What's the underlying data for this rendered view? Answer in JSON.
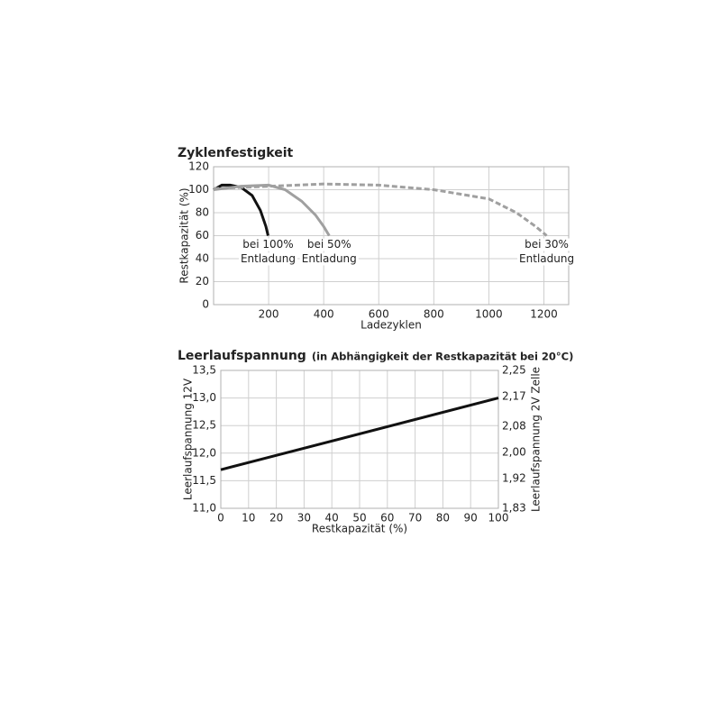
{
  "chart_data": [
    {
      "type": "line",
      "title": "Zyklenfestigkeit",
      "x_label": "Ladezyklen",
      "y_label": "Restkapazität (%)",
      "xlim": [
        0,
        1290
      ],
      "ylim": [
        0,
        120
      ],
      "xticks": [
        200,
        400,
        600,
        800,
        1000,
        1200
      ],
      "yticks": [
        0,
        20,
        40,
        60,
        80,
        100,
        120
      ],
      "grid": true,
      "series": [
        {
          "label": [
            "bei 100%",
            "Entladung"
          ],
          "color": "#111111",
          "dashed": false,
          "x": [
            0,
            30,
            60,
            100,
            140,
            170,
            190,
            198
          ],
          "values": [
            100,
            104,
            104,
            102,
            95,
            82,
            68,
            60
          ]
        },
        {
          "label": [
            "bei 50%",
            "Entladung"
          ],
          "color": "#a0a0a0",
          "dashed": false,
          "x": [
            0,
            100,
            200,
            260,
            320,
            370,
            400,
            420
          ],
          "values": [
            100,
            103,
            104,
            100,
            90,
            78,
            68,
            60
          ]
        },
        {
          "label": [
            "bei 30%",
            "Entladung"
          ],
          "color": "#a0a0a0",
          "dashed": true,
          "x": [
            0,
            200,
            400,
            600,
            800,
            1000,
            1100,
            1170,
            1210
          ],
          "values": [
            101,
            103,
            105,
            104,
            100,
            92,
            80,
            68,
            60
          ]
        }
      ]
    },
    {
      "type": "line",
      "title": "Leerlaufspannung",
      "subtitle": "(in Abhängigkeit der Restkapazität bei 20°C)",
      "x_label": "Restkapazität (%)",
      "y_label": "Leerlaufspannung 12V",
      "y2_label": "Leerlaufspannung 2V Zelle",
      "xlim": [
        0,
        100
      ],
      "ylim": [
        11.0,
        13.5
      ],
      "y2lim": [
        1.83,
        2.25
      ],
      "xticks": [
        0,
        10,
        20,
        30,
        40,
        50,
        60,
        70,
        80,
        90,
        100
      ],
      "yticks": [
        {
          "value": 11.0,
          "label": "11,0"
        },
        {
          "value": 11.5,
          "label": "11,5"
        },
        {
          "value": 12.0,
          "label": "12,0"
        },
        {
          "value": 12.5,
          "label": "12,5"
        },
        {
          "value": 13.0,
          "label": "13,0"
        },
        {
          "value": 13.5,
          "label": "13,5"
        }
      ],
      "y2ticks": [
        {
          "value": 1.83,
          "label": "1,83"
        },
        {
          "value": 1.92,
          "label": "1,92"
        },
        {
          "value": 2.0,
          "label": "2,00"
        },
        {
          "value": 2.08,
          "label": "2,08"
        },
        {
          "value": 2.17,
          "label": "2,17"
        },
        {
          "value": 2.25,
          "label": "2,25"
        }
      ],
      "grid": true,
      "series": [
        {
          "color": "#111111",
          "dashed": false,
          "x": [
            0,
            100
          ],
          "values": [
            11.7,
            13.0
          ]
        }
      ]
    }
  ]
}
